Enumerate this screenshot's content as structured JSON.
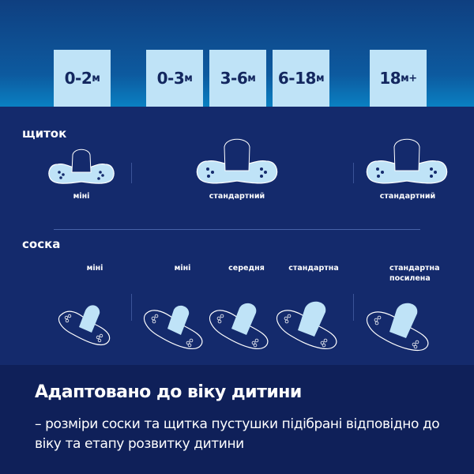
{
  "ages": [
    {
      "num": "0-2",
      "unit": "м"
    },
    {
      "num": "0-3",
      "unit": "м"
    },
    {
      "num": "3-6",
      "unit": "м"
    },
    {
      "num": "6-18",
      "unit": "м"
    },
    {
      "num": "18",
      "unit": "м+"
    }
  ],
  "shield": {
    "title": "щиток",
    "items": [
      "міні",
      "стандартний",
      "стандартний"
    ]
  },
  "teat": {
    "title": "соска",
    "items": [
      "міні",
      "міні",
      "середня",
      "стандартна",
      "стандартна посилена"
    ]
  },
  "footer": {
    "title": "Адаптовано до віку дитини",
    "description": "– розміри соски та щитка пустушки підібрані відповідно до віку та етапу розвитку дитини"
  },
  "colors": {
    "box": "#bfe3f7",
    "navy": "#142a6c",
    "footer": "#0f2059"
  }
}
